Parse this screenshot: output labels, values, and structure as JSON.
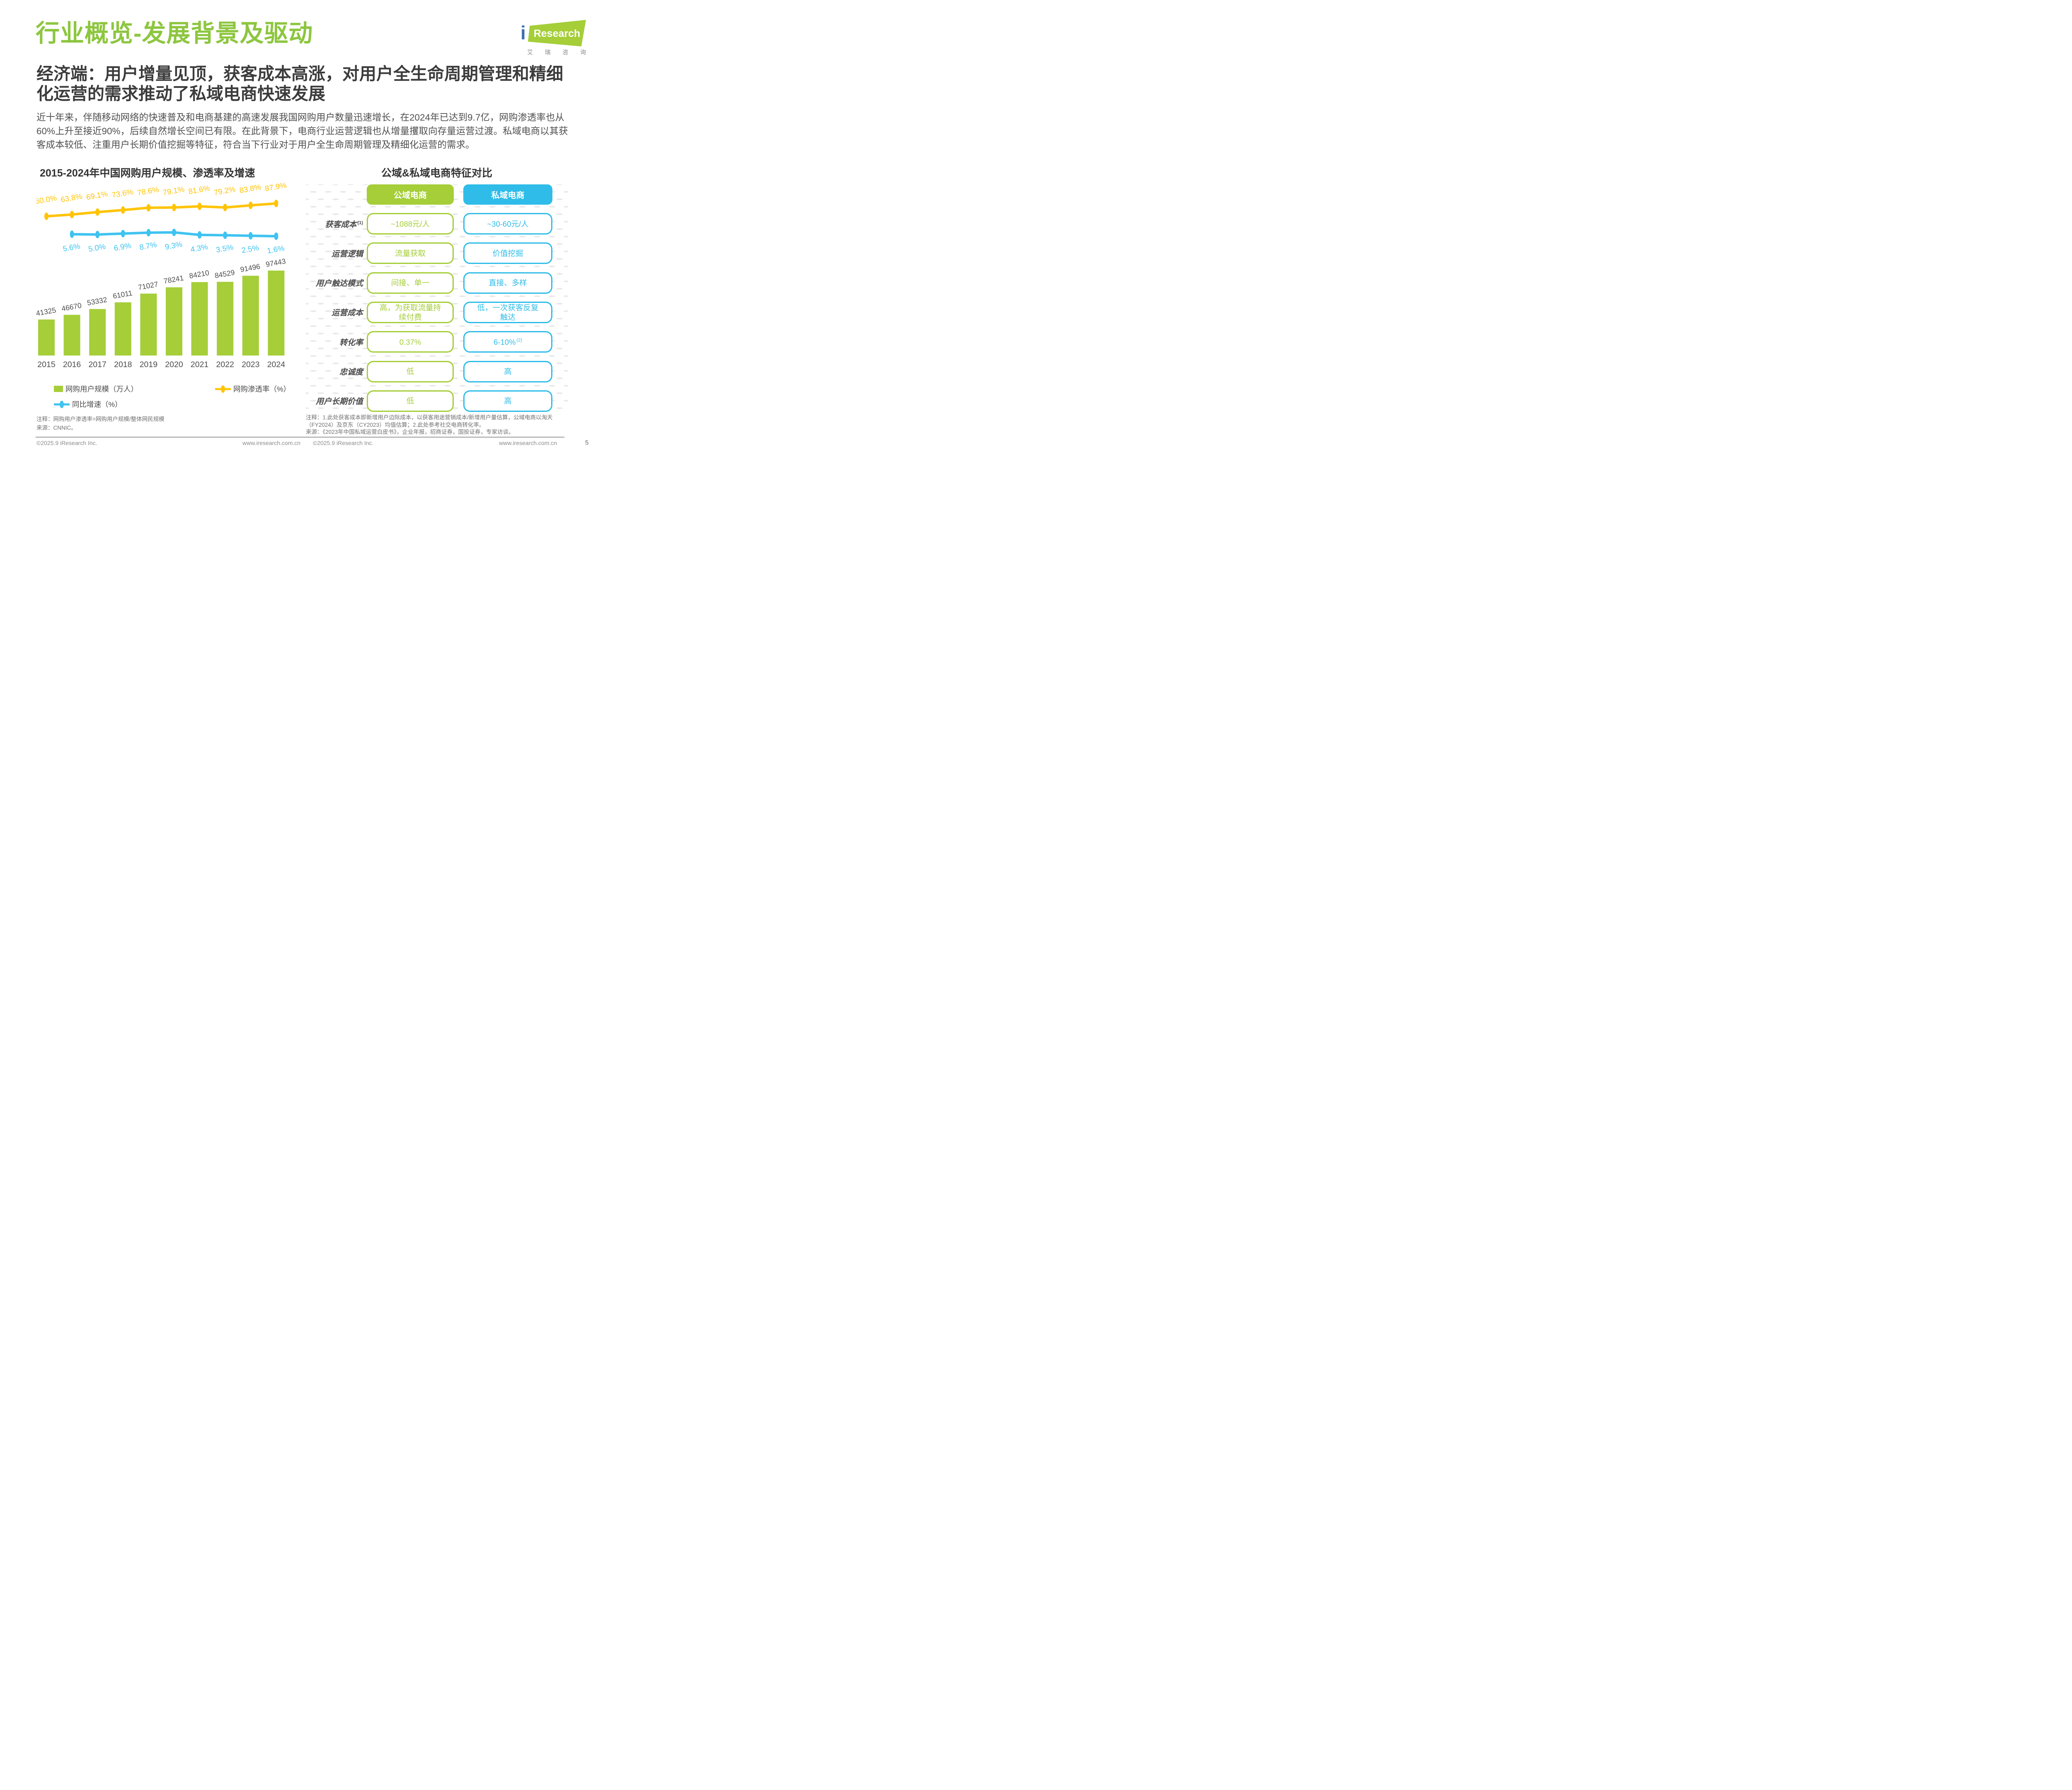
{
  "page": {
    "title": "行业概览-发展背景及驱动",
    "subtitle": "经济端：用户增量见顶，获客成本高涨，对用户全生命周期管理和精细化运营的需求推动了私域电商快速发展",
    "body": "近十年来，伴随移动网络的快速普及和电商基建的高速发展我国网购用户数量迅速增长，在2024年已达到9.7亿，网购渗透率也从60%上升至接近90%，后续自然增长空间已有限。在此背景下，电商行业运营逻辑也从增量攫取向存量运营过渡。私域电商以其获客成本较低、注重用户长期价值挖掘等特征，符合当下行业对于用户全生命周期管理及精细化运营的需求。",
    "page_number": "5"
  },
  "logo": {
    "i": "i",
    "research": "Research",
    "chinese": "艾瑞咨询"
  },
  "chart": {
    "title": "2015-2024年中国网购用户规模、渗透率及增速",
    "notes": [
      "注释：网购用户渗透率=网购用户规模/整体网民规模",
      "来源：CNNIC。"
    ]
  },
  "chart_data": {
    "type": "combo",
    "title": "2015-2024年中国网购用户规模、渗透率及增速",
    "categories": [
      "2015",
      "2016",
      "2017",
      "2018",
      "2019",
      "2020",
      "2021",
      "2022",
      "2023",
      "2024"
    ],
    "series": [
      {
        "name": "网购用户规模（万人）",
        "type": "bar",
        "color": "#A5CE39",
        "values": [
          41325,
          46670,
          53332,
          61011,
          71027,
          78241,
          84210,
          84529,
          91496,
          97443
        ]
      },
      {
        "name": "网购渗透率（%）",
        "type": "line",
        "color": "#FFC408",
        "values": [
          60.0,
          63.8,
          69.1,
          73.6,
          78.6,
          79.1,
          81.6,
          79.2,
          83.8,
          87.9
        ]
      },
      {
        "name": "同比增速（%）",
        "type": "line",
        "color": "#3FC3F0",
        "values": [
          null,
          5.6,
          5.0,
          6.9,
          8.7,
          9.3,
          4.3,
          3.5,
          2.5,
          1.6
        ]
      }
    ],
    "xlabel": "",
    "ylabel": "",
    "ylim": [
      0,
      100000
    ],
    "grid": false,
    "legend_position": "bottom",
    "data_label_rotation_deg": -10
  },
  "table": {
    "title": "公域&私域电商特征对比",
    "columns": [
      {
        "label": "公域电商",
        "color": "#A5CE39"
      },
      {
        "label": "私域电商",
        "color": "#2FBCE9"
      }
    ],
    "rows": [
      {
        "label": "获客成本",
        "label_sup": "(1)",
        "public": "~1088元/人",
        "private": "~30-60元/人"
      },
      {
        "label": "运营逻辑",
        "public": "流量获取",
        "private": "价值挖掘"
      },
      {
        "label": "用户触达模式",
        "public": "间接、单一",
        "private": "直接、多样"
      },
      {
        "label": "运营成本",
        "public": "高，为获取流量持续付费",
        "private": "低，一次获客反复触达"
      },
      {
        "label": "转化率",
        "public": "0.37%",
        "private": "6-10%",
        "private_sup": "(2)"
      },
      {
        "label": "忠诚度",
        "public": "低",
        "private": "高"
      },
      {
        "label": "用户长期价值",
        "public": "低",
        "private": "高"
      }
    ],
    "notes": [
      "注释：1.此处获客成本即新增用户边际成本，以获客用途营销成本/新增用户量估算，公域电商以淘天（FY2024）及京东（CY2023）均值估算；2.此处参考社交电商转化率。",
      "来源：《2023年中国私域运营白皮书》，企业年报，招商证券，国投证券，专家访谈。"
    ]
  },
  "footer": {
    "copyright": "©2025.9 iResearch Inc.",
    "site": "www.iresearch.com.cn"
  }
}
